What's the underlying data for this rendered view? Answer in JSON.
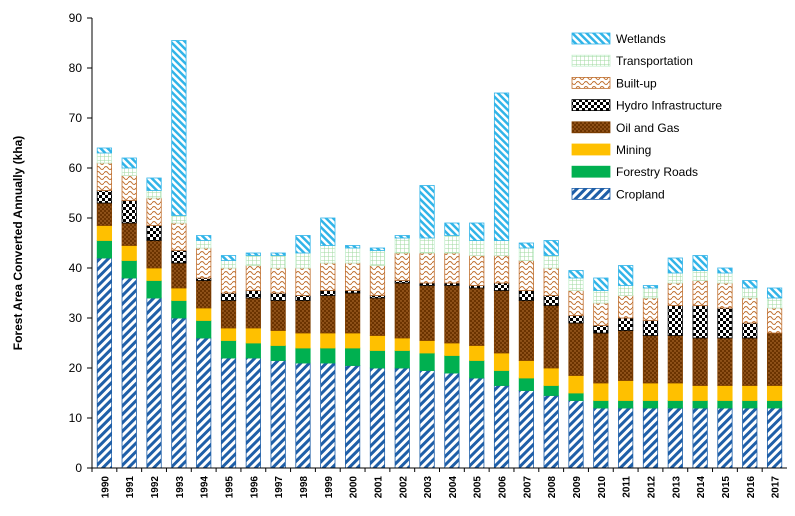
{
  "chart_data": {
    "type": "bar",
    "stacked": true,
    "title": "",
    "xlabel": "",
    "ylabel": "Forest Area Converted Annually (kha)",
    "ylim": [
      0,
      90
    ],
    "yticks": [
      0,
      10,
      20,
      30,
      40,
      50,
      60,
      70,
      80,
      90
    ],
    "grid": false,
    "legend_position": "top-right",
    "categories": [
      "1990",
      "1991",
      "1992",
      "1993",
      "1994",
      "1995",
      "1996",
      "1997",
      "1998",
      "1999",
      "2000",
      "2001",
      "2002",
      "2003",
      "2004",
      "2005",
      "2006",
      "2007",
      "2008",
      "2009",
      "2010",
      "2011",
      "2012",
      "2013",
      "2014",
      "2015",
      "2016",
      "2017"
    ],
    "series": [
      {
        "name": "Cropland",
        "color": "#1f5fa8",
        "pattern": "diag-blue",
        "values": [
          42,
          38,
          34,
          30,
          26,
          22,
          22,
          21.5,
          21,
          21,
          20.5,
          20,
          20,
          19.5,
          19,
          18,
          16.5,
          15.5,
          14.5,
          13.5,
          12,
          12,
          12,
          12,
          12,
          12,
          12,
          12
        ]
      },
      {
        "name": "Forestry Roads",
        "color": "#00b050",
        "pattern": "solid-green",
        "values": [
          3.5,
          3.5,
          3.5,
          3.5,
          3.5,
          3.5,
          3,
          3,
          3,
          3,
          3.5,
          3.5,
          3.5,
          3.5,
          3.5,
          3.5,
          3,
          2.5,
          2,
          1.5,
          1.5,
          1.5,
          1.5,
          1.5,
          1.5,
          1.5,
          1.5,
          1.5
        ]
      },
      {
        "name": "Mining",
        "color": "#ffc000",
        "pattern": "solid-yellow",
        "values": [
          3,
          3,
          2.5,
          2.5,
          2.5,
          2.5,
          3,
          3,
          3,
          3,
          3,
          3,
          2.5,
          2.5,
          2.5,
          3,
          3.5,
          3.5,
          3.5,
          3.5,
          3.5,
          4,
          3.5,
          3.5,
          3,
          3,
          3,
          3
        ]
      },
      {
        "name": "Oil and Gas",
        "color": "#7f3f00",
        "pattern": "dots-brown",
        "values": [
          4.5,
          4.5,
          5.5,
          5,
          5.5,
          5.5,
          6,
          6,
          6.5,
          7.5,
          8,
          7.5,
          11,
          11,
          11.5,
          11.5,
          12.5,
          12,
          12.5,
          10.5,
          10,
          10,
          9.5,
          9.5,
          9.5,
          9.5,
          9.5,
          10.5
        ]
      },
      {
        "name": "Hydro Infrastructure",
        "color": "#000000",
        "pattern": "check-black",
        "values": [
          2.5,
          4.5,
          3,
          2.5,
          0.5,
          1.5,
          1.5,
          1.5,
          1,
          1,
          0.5,
          0.5,
          0.5,
          0.5,
          0.5,
          0.5,
          1.5,
          2,
          2,
          1.5,
          1.5,
          2.5,
          3,
          6,
          6.5,
          6,
          3,
          0
        ]
      },
      {
        "name": "Built-up",
        "color": "#c07030",
        "pattern": "wave-tan",
        "values": [
          5.5,
          5,
          5.5,
          5.5,
          6,
          5,
          5,
          5,
          5.5,
          5.5,
          5.5,
          6,
          5.5,
          6,
          6,
          6,
          5.5,
          6,
          5.5,
          5,
          4.5,
          4.5,
          4.5,
          4.5,
          5,
          5,
          5,
          5
        ]
      },
      {
        "name": "Transportation",
        "color": "#c6efce",
        "pattern": "grid-green",
        "values": [
          2,
          1.5,
          1.5,
          1.5,
          1.5,
          1.5,
          2,
          2.5,
          3,
          3.5,
          3,
          3,
          3,
          3,
          3.5,
          3,
          3,
          2.5,
          2.5,
          2.5,
          2.5,
          2,
          2,
          2,
          2,
          2,
          2,
          2
        ]
      },
      {
        "name": "Wetlands",
        "color": "#31b4e8",
        "pattern": "hatch-cyan",
        "values": [
          1,
          2,
          2.5,
          35,
          1,
          1,
          0.5,
          0.5,
          3.5,
          5.5,
          0.5,
          0.5,
          0.5,
          10.5,
          2.5,
          3.5,
          29.5,
          1,
          3,
          1.5,
          2.5,
          4,
          0.5,
          3,
          3,
          1,
          1.5,
          2
        ]
      }
    ]
  }
}
